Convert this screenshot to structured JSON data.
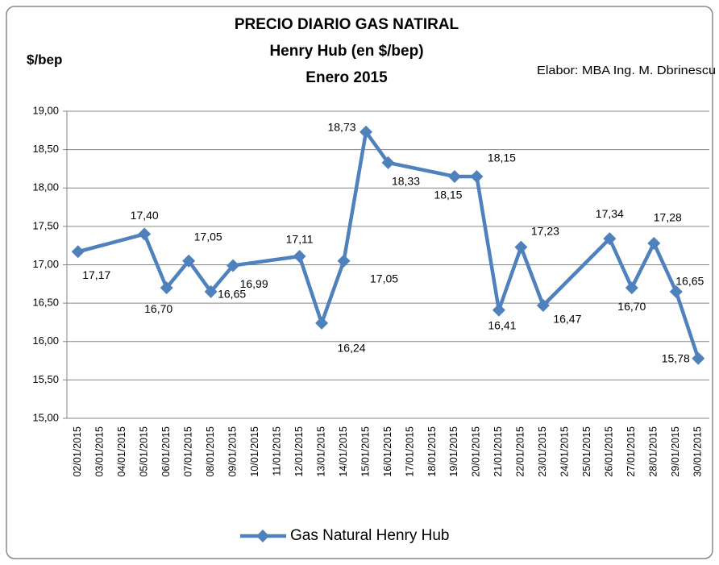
{
  "chart_data": {
    "type": "line",
    "title": [
      "PRECIO DIARIO GAS NATIRAL",
      "Henry Hub  (en $/bep)",
      "Enero 2015"
    ],
    "ylabel": "$/bep",
    "annotation": "Elabor: MBA Ing. M. Dbrinescu",
    "categories": [
      "02/01/2015",
      "03/01/2015",
      "04/01/2015",
      "05/01/2015",
      "06/01/2015",
      "07/01/2015",
      "08/01/2015",
      "09/01/2015",
      "10/01/2015",
      "11/01/2015",
      "12/01/2015",
      "13/01/2015",
      "14/01/2015",
      "15/01/2015",
      "16/01/2015",
      "17/01/2015",
      "18/01/2015",
      "19/01/2015",
      "20/01/2015",
      "21/01/2015",
      "22/01/2015",
      "23/01/2015",
      "24/01/2015",
      "25/01/2015",
      "26/01/2015",
      "27/01/2015",
      "28/01/2015",
      "29/01/2015",
      "30/01/2015"
    ],
    "series": [
      {
        "name": "Gas Natural  Henry Hub",
        "color": "#4f81bd",
        "values": [
          17.17,
          null,
          null,
          17.4,
          16.7,
          17.05,
          16.65,
          16.99,
          null,
          null,
          17.11,
          16.24,
          17.05,
          18.73,
          18.33,
          null,
          null,
          18.15,
          18.15,
          16.41,
          17.23,
          16.47,
          null,
          null,
          17.34,
          16.7,
          17.28,
          16.65,
          15.78
        ],
        "value_labels": [
          "17,17",
          null,
          null,
          "17,40",
          "16,70",
          "17,05",
          "16,65",
          "16,99",
          null,
          null,
          "17,11",
          "16,24",
          "17,05",
          "18,73",
          "18,33",
          null,
          null,
          "18,15",
          "18,15",
          "16,41",
          "17,23",
          "16,47",
          null,
          null,
          "17,34",
          "16,70",
          "17,28",
          "16,65",
          "15,78"
        ]
      }
    ],
    "connect_gaps": true,
    "ylim": [
      15,
      19
    ],
    "yticks": [
      {
        "value": 15,
        "label": "15,00"
      },
      {
        "value": 15.5,
        "label": "15,50"
      },
      {
        "value": 16,
        "label": "16,00"
      },
      {
        "value": 16.5,
        "label": "16,50"
      },
      {
        "value": 17,
        "label": "17,00"
      },
      {
        "value": 17.5,
        "label": "17,50"
      },
      {
        "value": 18,
        "label": "18,00"
      },
      {
        "value": 18.5,
        "label": "18,50"
      },
      {
        "value": 19,
        "label": "19,00"
      }
    ],
    "grid": true,
    "legend": "bottom"
  }
}
